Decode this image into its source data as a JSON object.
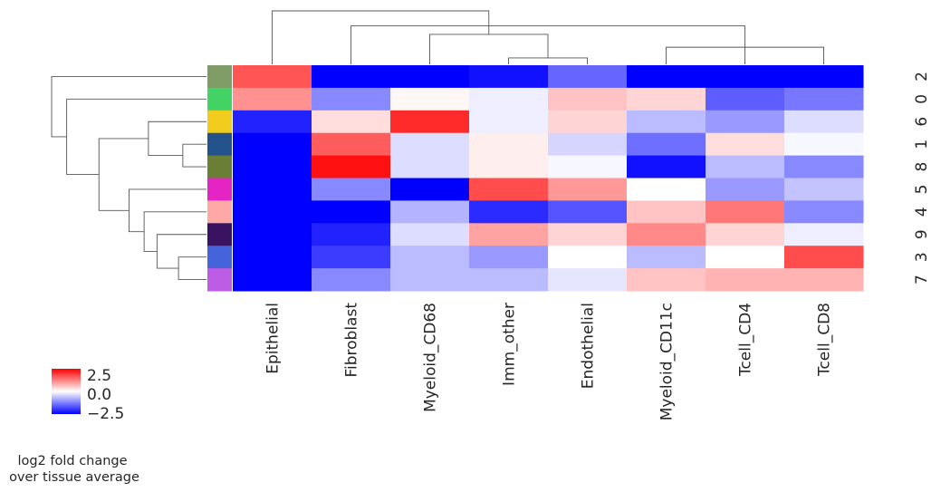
{
  "chart_data": {
    "type": "heatmap",
    "title": "",
    "columns": [
      "Epithelial",
      "Fibroblast",
      "Myeloid_CD68",
      "Imm_other",
      "Endothelial",
      "Myeloid_CD11c",
      "Tcell_CD4",
      "Tcell_CD8"
    ],
    "rows": [
      "2",
      "0",
      "6",
      "1",
      "8",
      "5",
      "4",
      "9",
      "3",
      "7"
    ],
    "values": [
      [
        2.0,
        -3.0,
        -3.0,
        -2.8,
        -1.8,
        -3.0,
        -3.0,
        -3.0
      ],
      [
        1.3,
        -1.4,
        0.1,
        -0.2,
        0.7,
        0.5,
        -1.9,
        -1.6
      ],
      [
        -2.6,
        0.4,
        2.5,
        -0.2,
        0.5,
        -0.8,
        -1.2,
        -0.4
      ],
      [
        -3.0,
        1.9,
        -0.4,
        0.2,
        -0.5,
        -1.7,
        0.4,
        -0.1
      ],
      [
        -3.0,
        2.8,
        -0.4,
        0.2,
        -0.1,
        -2.8,
        -0.8,
        -1.4
      ],
      [
        -3.0,
        -1.4,
        -3.0,
        2.1,
        1.2,
        0.0,
        -1.2,
        -0.7
      ],
      [
        -3.0,
        -3.0,
        -0.9,
        -2.5,
        -2.0,
        0.7,
        1.6,
        -1.4
      ],
      [
        -3.0,
        -2.6,
        -0.4,
        1.1,
        0.5,
        1.4,
        0.5,
        -0.2
      ],
      [
        -3.0,
        -2.3,
        -0.8,
        -1.2,
        0.0,
        -0.8,
        0.0,
        2.1
      ],
      [
        -3.0,
        -1.4,
        -0.8,
        -0.8,
        -0.3,
        0.7,
        0.9,
        0.9
      ]
    ],
    "row_colors": [
      "#7f9b66",
      "#42d364",
      "#f2cc1c",
      "#23528d",
      "#6b7e35",
      "#e425c4",
      "#ffa8a8",
      "#3a1262",
      "#4564db",
      "#bd5ce5"
    ],
    "colorbar": {
      "ticks": [
        "2.5",
        "0.0",
        "−2.5"
      ],
      "tick_values": [
        2.5,
        0.0,
        -2.5
      ],
      "range": [
        -3.0,
        3.0
      ],
      "label_line1": "log2 fold change",
      "label_line2": "over tissue average"
    },
    "colors": {
      "high": "#ff0000",
      "mid": "#ffffff",
      "low": "#0000ff"
    },
    "col_dendrogram": {
      "merges": [
        [
          3,
          4
        ],
        [
          7,
          5
        ],
        [
          6,
          9
        ],
        [
          2,
          8
        ],
        [
          1,
          10
        ],
        [
          0,
          11
        ]
      ],
      "heights": [
        0.6,
        1.6,
        2.0,
        2.8,
        3.6,
        5.0
      ]
    },
    "row_dendrogram": {
      "merges": [
        [
          3,
          4
        ],
        [
          8,
          9
        ],
        [
          7,
          11
        ],
        [
          6,
          12
        ],
        [
          5,
          13
        ],
        [
          2,
          10
        ],
        [
          15,
          14
        ],
        [
          1,
          16
        ],
        [
          0,
          17
        ]
      ],
      "heights": [
        0.55,
        0.65,
        1.15,
        1.45,
        1.8,
        1.35,
        2.5,
        3.25,
        3.6
      ]
    }
  }
}
